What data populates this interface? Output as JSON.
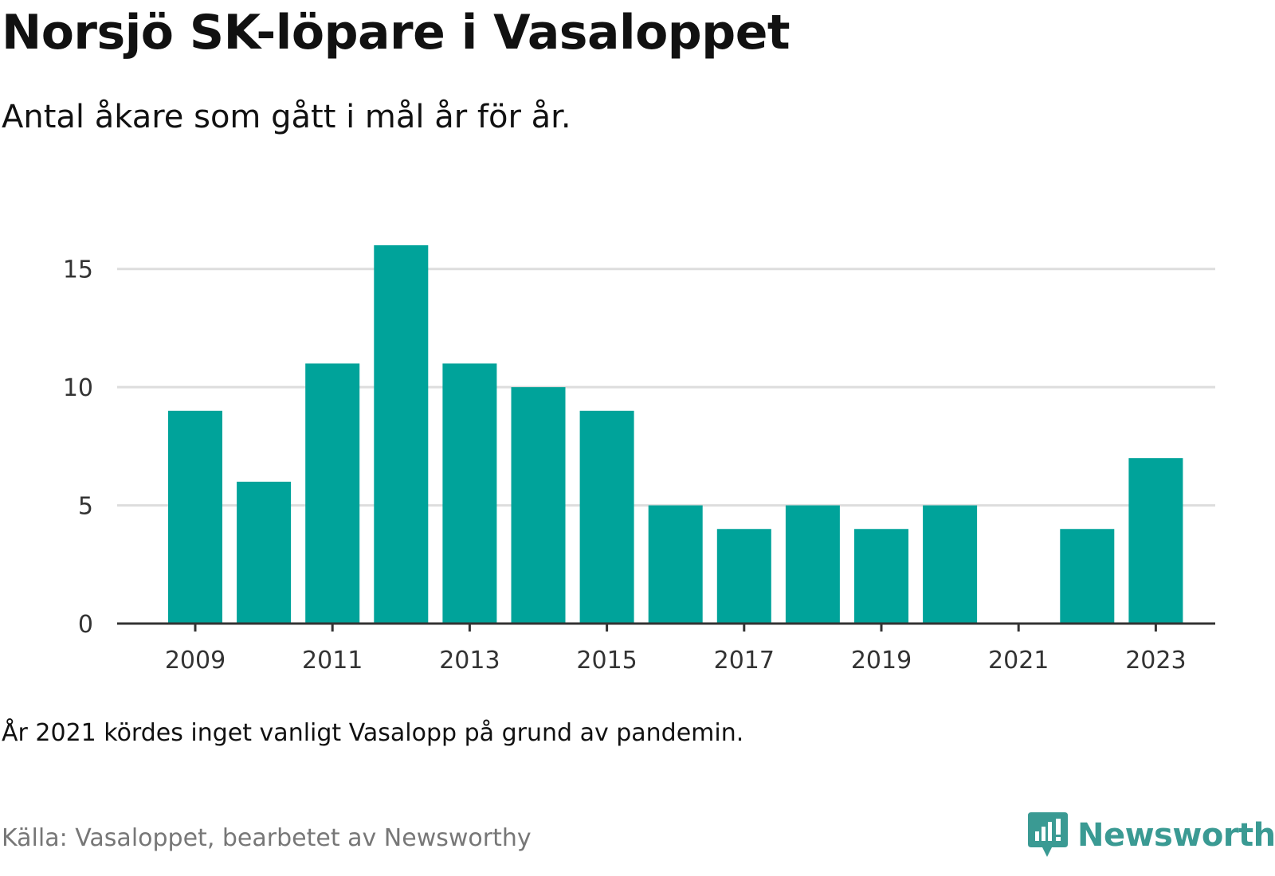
{
  "title": "Norsjö SK-löpare i Vasaloppet",
  "subtitle": "Antal åkare som gått i mål år för år.",
  "note": "År 2021 kördes inget vanligt Vasalopp på grund av pandemin.",
  "source": "Källa: Vasaloppet, bearbetet av Newsworthy",
  "brand": {
    "name": "Newsworthy",
    "color": "#3a9a93",
    "icon": "newsworthy-logo-icon"
  },
  "colors": {
    "bar": "#00a39a",
    "grid": "#dddddd",
    "axis": "#333333"
  },
  "chart_data": {
    "type": "bar",
    "categories": [
      2009,
      2010,
      2011,
      2012,
      2013,
      2014,
      2015,
      2016,
      2017,
      2018,
      2019,
      2020,
      2021,
      2022,
      2023
    ],
    "values": [
      9,
      6,
      11,
      16,
      11,
      10,
      9,
      5,
      4,
      5,
      4,
      5,
      0,
      4,
      7
    ],
    "x_tick_labels": [
      "2009",
      "2011",
      "2013",
      "2015",
      "2017",
      "2019",
      "2021",
      "2023"
    ],
    "y_ticks": [
      0,
      5,
      10,
      15
    ],
    "ylim": [
      0,
      16
    ],
    "grid": true,
    "xlabel": "",
    "ylabel": ""
  }
}
